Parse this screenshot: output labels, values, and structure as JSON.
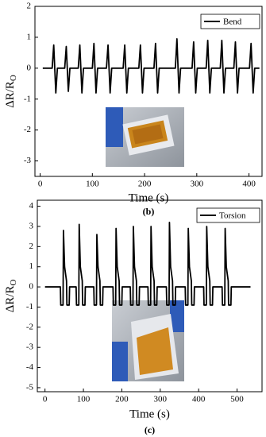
{
  "chart_data": [
    {
      "type": "line",
      "caption": "(b)",
      "x_label": "Time (s)",
      "y_label": "ΔR/R",
      "y_label_sub": "O",
      "xlim": [
        -10,
        425
      ],
      "ylim": [
        -3.5,
        2
      ],
      "xticks": [
        0,
        100,
        200,
        300,
        400
      ],
      "yticks": [
        -3,
        -2,
        -1,
        0,
        1,
        2
      ],
      "legend": "top-right",
      "x": [
        5,
        23,
        26,
        30,
        33,
        47,
        50,
        54,
        57,
        73,
        76,
        80,
        83,
        100,
        103,
        107,
        110,
        127,
        130,
        134,
        137,
        159,
        162,
        166,
        169,
        189,
        192,
        196,
        199,
        218,
        221,
        225,
        228,
        259,
        262,
        266,
        269,
        291,
        294,
        298,
        301,
        318,
        321,
        325,
        328,
        345,
        348,
        352,
        355,
        371,
        374,
        378,
        381,
        401,
        404,
        408,
        411,
        420
      ],
      "series": [
        {
          "name": "Bend",
          "color": "#000000",
          "values": [
            0,
            0,
            0.75,
            -0.8,
            0,
            0,
            0.7,
            -0.75,
            0,
            0,
            0.75,
            -0.8,
            0,
            0,
            0.8,
            -0.8,
            0,
            0,
            0.75,
            -0.8,
            0,
            0,
            0.75,
            -0.8,
            0,
            0,
            0.75,
            -0.8,
            0,
            0,
            0.8,
            -0.8,
            0,
            0,
            0.95,
            -0.8,
            0,
            0,
            0.85,
            -0.8,
            0,
            0,
            0.9,
            -0.8,
            0,
            0,
            0.9,
            -0.8,
            0,
            0,
            0.85,
            -0.8,
            0,
            0,
            0.8,
            -0.8,
            0,
            0
          ]
        }
      ]
    },
    {
      "type": "line",
      "caption": "(c)",
      "x_label": "Time (s)",
      "y_label": "ΔR/R",
      "y_label_sub": "O",
      "xlim": [
        -20,
        565
      ],
      "ylim": [
        -5.2,
        4.3
      ],
      "xticks": [
        0,
        100,
        200,
        300,
        400,
        500
      ],
      "yticks": [
        -5,
        -4,
        -3,
        -2,
        -1,
        0,
        1,
        2,
        3,
        4
      ],
      "legend": "top-right",
      "x": [
        0,
        40,
        41,
        47,
        48,
        51,
        56,
        57,
        63,
        64,
        81,
        82,
        88,
        89,
        92,
        97,
        98,
        104,
        105,
        127,
        128,
        134,
        135,
        138,
        143,
        144,
        150,
        151,
        177,
        178,
        184,
        185,
        188,
        193,
        194,
        200,
        201,
        222,
        223,
        229,
        230,
        233,
        238,
        239,
        245,
        246,
        268,
        269,
        275,
        276,
        279,
        284,
        285,
        291,
        292,
        316,
        317,
        323,
        324,
        327,
        332,
        333,
        339,
        340,
        365,
        366,
        372,
        373,
        376,
        381,
        382,
        388,
        389,
        413,
        414,
        420,
        421,
        424,
        429,
        430,
        436,
        437,
        461,
        462,
        468,
        469,
        472,
        477,
        478,
        484,
        485,
        535
      ],
      "series": [
        {
          "name": "Torsion",
          "color": "#000000",
          "values": [
            0,
            0,
            -0.9,
            -0.9,
            2.8,
            1,
            0.3,
            -0.9,
            -0.9,
            0,
            0,
            -0.9,
            -0.9,
            3.1,
            1,
            0.3,
            -0.9,
            -0.9,
            0,
            0,
            -0.9,
            -0.9,
            2.6,
            1,
            0.3,
            -0.9,
            -0.9,
            0,
            0,
            -0.9,
            -0.9,
            2.9,
            1,
            0.3,
            -0.9,
            -0.9,
            0,
            0,
            -0.9,
            -0.9,
            3.0,
            1,
            0.3,
            -0.9,
            -0.9,
            0,
            0,
            -0.9,
            -0.9,
            3.0,
            1,
            0.3,
            -0.9,
            -0.9,
            0,
            0,
            -0.9,
            -0.9,
            3.2,
            1,
            0.3,
            -0.9,
            -0.9,
            0,
            0,
            -0.9,
            -0.9,
            2.9,
            1,
            0.3,
            -0.9,
            -0.9,
            0,
            0,
            -0.9,
            -0.9,
            3.0,
            1,
            0.3,
            -0.9,
            -0.9,
            0,
            0,
            -0.9,
            -0.9,
            2.9,
            1,
            0.3,
            -0.9,
            -0.9,
            0,
            0
          ]
        }
      ]
    }
  ]
}
